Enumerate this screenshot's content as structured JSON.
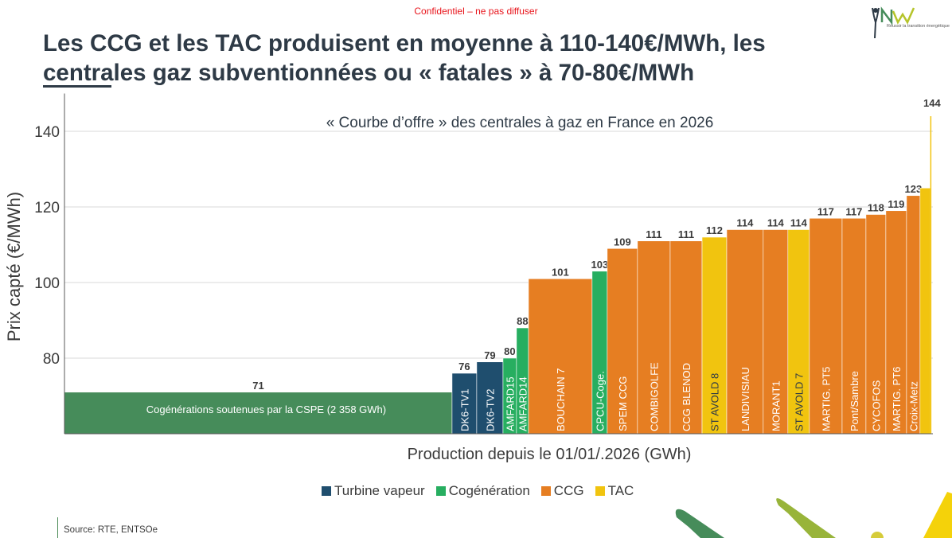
{
  "header": {
    "confidential": "Confidentiel – ne pas diffuser",
    "title_line1": "Les CCG et les TAC produisent en moyenne à 110-140€/MWh, les",
    "title_line2": "centrales gaz subventionnées ou « fatales » à 70-80€/MWh",
    "logo_tagline": "Réussir la transition énergétique"
  },
  "footer": {
    "source": "Source: RTE, ENTSOe"
  },
  "chart_data": {
    "type": "bar",
    "subtype": "variable-width supply curve (merit order)",
    "title": "« Courbe d’offre » des centrales à gaz en France en 2026",
    "xlabel": "Production depuis le 01/01/.2026 (GWh)",
    "ylabel": "Prix capté (€/MWh)",
    "ylim": [
      60,
      150
    ],
    "yticks": [
      80,
      100,
      120,
      140
    ],
    "grid": true,
    "legend_position": "bottom",
    "legend": [
      {
        "name": "Turbine vapeur",
        "color": "#1f4e6e"
      },
      {
        "name": "Cogénération",
        "color": "#27ae60"
      },
      {
        "name": "CCG",
        "color": "#e67e22"
      },
      {
        "name": "TAC",
        "color": "#f1c40f"
      }
    ],
    "type_colors": {
      "CSPE": "#468c5a",
      "Turbine vapeur": "#1f4e6e",
      "Cogénération": "#27ae60",
      "CCG": "#e67e22",
      "TAC": "#f1c40f"
    },
    "bars": [
      {
        "name": "Cogénérations soutenues par la CSPE (2 358 GWh)",
        "value": 71,
        "production_gwh": 2358,
        "type": "CSPE",
        "label_orientation": "horizontal"
      },
      {
        "name": "DK6-TV1",
        "value": 76,
        "production_gwh": 150,
        "type": "Turbine vapeur"
      },
      {
        "name": "DK6-TV2",
        "value": 79,
        "production_gwh": 160,
        "type": "Turbine vapeur"
      },
      {
        "name": "AMFARD15",
        "value": 80,
        "production_gwh": 82,
        "type": "Cogénération"
      },
      {
        "name": "AMFARD14",
        "value": 88,
        "production_gwh": 73,
        "type": "Cogénération"
      },
      {
        "name": "BOUCHAIN 7",
        "value": 101,
        "production_gwh": 387,
        "type": "CCG"
      },
      {
        "name": "CPCU-Coge.",
        "value": 103,
        "production_gwh": 92,
        "type": "Cogénération"
      },
      {
        "name": "SPEM CCG",
        "value": 109,
        "production_gwh": 184,
        "type": "CCG"
      },
      {
        "name": "COMBIGOLFE",
        "value": 111,
        "production_gwh": 199,
        "type": "CCG"
      },
      {
        "name": "CCG BLENOD",
        "value": 111,
        "production_gwh": 194,
        "type": "CCG"
      },
      {
        "name": "ST AVOLD 8",
        "value": 112,
        "production_gwh": 150,
        "type": "TAC"
      },
      {
        "name": "LANDIVISIAU",
        "value": 114,
        "production_gwh": 222,
        "type": "CCG"
      },
      {
        "name": "MORANT1",
        "value": 114,
        "production_gwh": 150,
        "type": "CCG"
      },
      {
        "name": "ST AVOLD 7",
        "value": 114,
        "production_gwh": 131,
        "type": "TAC"
      },
      {
        "name": "MARTIG. PT5",
        "value": 117,
        "production_gwh": 199,
        "type": "CCG"
      },
      {
        "name": "Pont/Sambre",
        "value": 117,
        "production_gwh": 145,
        "type": "CCG"
      },
      {
        "name": "CYCOFOS",
        "value": 118,
        "production_gwh": 121,
        "type": "CCG"
      },
      {
        "name": "MARTIG. PT6",
        "value": 119,
        "production_gwh": 126,
        "type": "CCG"
      },
      {
        "name": "Croix-Metz",
        "value": 123,
        "production_gwh": 82,
        "type": "CCG"
      },
      {
        "name": "",
        "value": 125,
        "production_gwh": 63,
        "type": "TAC",
        "value_label": ""
      },
      {
        "name": "",
        "value": 144,
        "production_gwh": 5,
        "type": "TAC"
      }
    ]
  }
}
